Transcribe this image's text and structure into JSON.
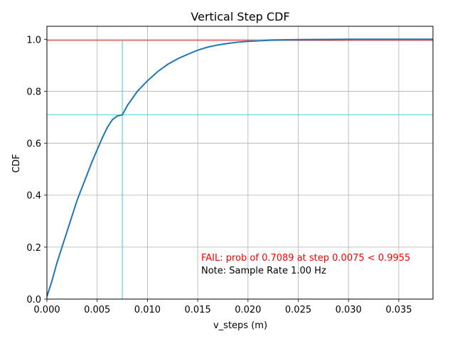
{
  "chart_data": {
    "type": "line",
    "title": "Vertical Step CDF",
    "xlabel": "v_steps (m)",
    "ylabel": "CDF",
    "xlim": [
      0.0,
      0.0384
    ],
    "ylim": [
      0.0,
      1.05
    ],
    "x_ticks": [
      0.0,
      0.005,
      0.01,
      0.015,
      0.02,
      0.025,
      0.03,
      0.035
    ],
    "x_tick_labels": [
      "0.000",
      "0.005",
      "0.010",
      "0.015",
      "0.020",
      "0.025",
      "0.030",
      "0.035"
    ],
    "y_ticks": [
      0.0,
      0.2,
      0.4,
      0.6,
      0.8,
      1.0
    ],
    "y_tick_labels": [
      "0.0",
      "0.2",
      "0.4",
      "0.6",
      "0.8",
      "1.0"
    ],
    "grid": true,
    "series": [
      {
        "x": [
          0.0,
          0.0005,
          0.001,
          0.0015,
          0.002,
          0.0025,
          0.003,
          0.0035,
          0.004,
          0.0045,
          0.005,
          0.0055,
          0.006,
          0.0065,
          0.007,
          0.0075,
          0.008,
          0.009,
          0.01,
          0.011,
          0.012,
          0.013,
          0.014,
          0.015,
          0.016,
          0.017,
          0.018,
          0.019,
          0.02,
          0.022,
          0.024,
          0.026,
          0.028,
          0.03,
          0.033,
          0.036,
          0.0384
        ],
        "y": [
          0.01,
          0.07,
          0.14,
          0.2,
          0.26,
          0.32,
          0.38,
          0.43,
          0.48,
          0.53,
          0.575,
          0.62,
          0.66,
          0.69,
          0.705,
          0.7089,
          0.745,
          0.8,
          0.84,
          0.875,
          0.903,
          0.925,
          0.942,
          0.958,
          0.97,
          0.978,
          0.984,
          0.989,
          0.992,
          0.996,
          0.998,
          0.999,
          0.9995,
          1.0,
          1.0,
          1.0,
          1.0
        ],
        "color": "#1f77b4"
      }
    ],
    "reference_lines": {
      "threshold_y": 0.9955,
      "threshold_color": "#d62728",
      "step_x": 0.0075,
      "prob_y": 0.7089,
      "marker_color": "#17becf"
    },
    "annotations": [
      {
        "text": "FAIL: prob of 0.7089 at step 0.0075 < 0.9955",
        "color": "#ff0000"
      },
      {
        "text": "Note: Sample Rate 1.00 Hz",
        "color": "#000000"
      }
    ]
  }
}
